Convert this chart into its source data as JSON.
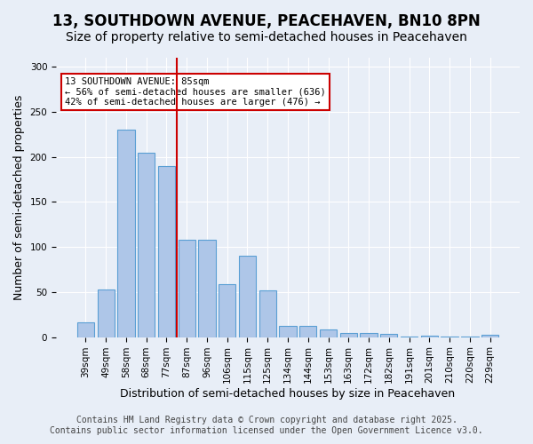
{
  "title_line1": "13, SOUTHDOWN AVENUE, PEACEHAVEN, BN10 8PN",
  "title_line2": "Size of property relative to semi-detached houses in Peacehaven",
  "xlabel": "Distribution of semi-detached houses by size in Peacehaven",
  "ylabel": "Number of semi-detached properties",
  "categories": [
    "39sqm",
    "49sqm",
    "58sqm",
    "68sqm",
    "77sqm",
    "87sqm",
    "96sqm",
    "106sqm",
    "115sqm",
    "125sqm",
    "134sqm",
    "144sqm",
    "153sqm",
    "163sqm",
    "172sqm",
    "182sqm",
    "191sqm",
    "201sqm",
    "210sqm",
    "220sqm",
    "229sqm"
  ],
  "values": [
    16,
    53,
    230,
    205,
    190,
    108,
    108,
    59,
    90,
    52,
    12,
    12,
    8,
    5,
    5,
    4,
    1,
    2,
    1,
    1,
    3
  ],
  "bar_color": "#aec6e8",
  "bar_edge_color": "#5a9fd4",
  "property_line_x": 4.5,
  "annotation_title": "13 SOUTHDOWN AVENUE: 85sqm",
  "annotation_line2": "← 56% of semi-detached houses are smaller (636)",
  "annotation_line3": "42% of semi-detached houses are larger (476) →",
  "annotation_box_color": "#cc0000",
  "ylim": [
    0,
    310
  ],
  "yticks": [
    0,
    50,
    100,
    150,
    200,
    250,
    300
  ],
  "footer_line1": "Contains HM Land Registry data © Crown copyright and database right 2025.",
  "footer_line2": "Contains public sector information licensed under the Open Government Licence v3.0.",
  "background_color": "#e8eef7",
  "plot_bg_color": "#e8eef7",
  "title_fontsize": 12,
  "subtitle_fontsize": 10,
  "axis_label_fontsize": 9,
  "tick_fontsize": 7.5,
  "footer_fontsize": 7
}
